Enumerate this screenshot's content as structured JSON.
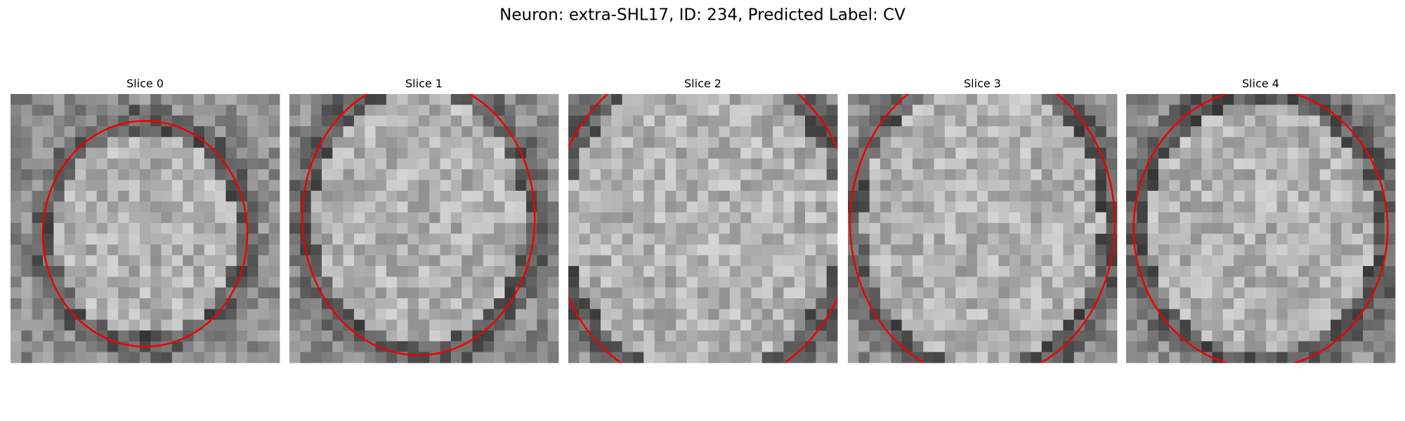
{
  "title": "Neuron: extra-SHL17, ID: 234, Predicted Label: CV",
  "panels": [
    {
      "title": "Slice 0"
    },
    {
      "title": "Slice 1"
    },
    {
      "title": "Slice 2"
    },
    {
      "title": "Slice 3"
    },
    {
      "title": "Slice 4"
    }
  ]
}
